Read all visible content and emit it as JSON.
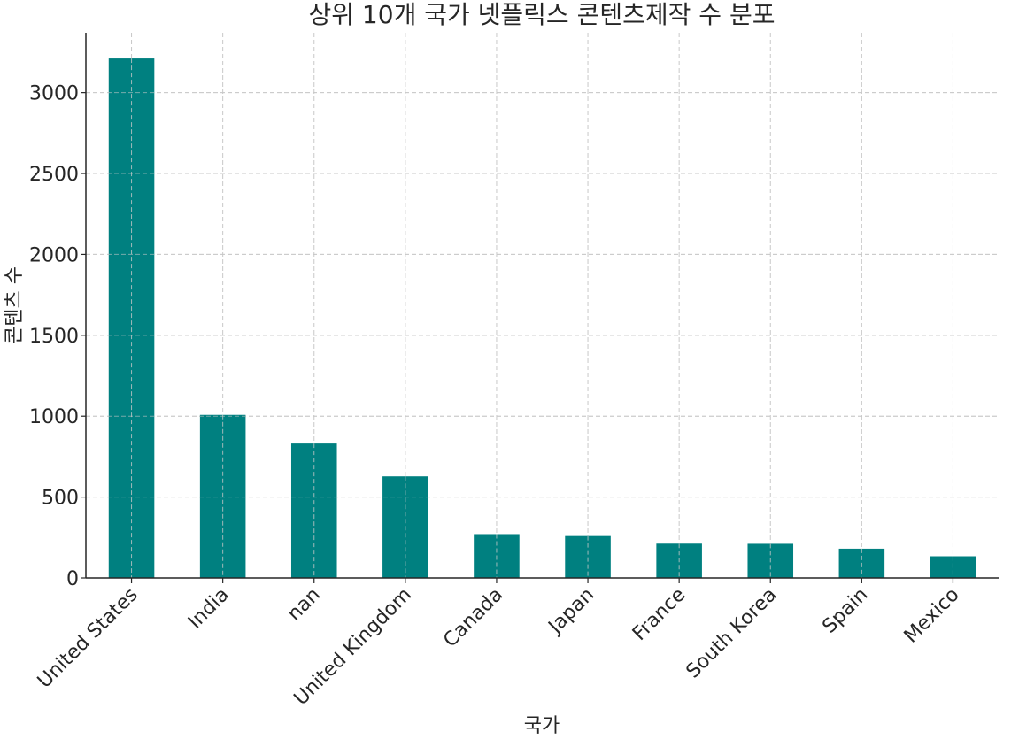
{
  "chart_data": {
    "type": "bar",
    "title": "상위 10개 국가 넷플릭스 콘텐츠제작 수 분포",
    "xlabel": "국가",
    "ylabel": "콘텐츠 수",
    "categories": [
      "United States",
      "India",
      "nan",
      "United Kingdom",
      "Canada",
      "Japan",
      "France",
      "South Korea",
      "Spain",
      "Mexico"
    ],
    "values": [
      3211,
      1008,
      831,
      628,
      271,
      259,
      212,
      211,
      181,
      134
    ],
    "ylim": [
      0,
      3370
    ],
    "yticks": [
      0,
      500,
      1000,
      1500,
      2000,
      2500,
      3000
    ],
    "grid": true,
    "bar_color": "#008080"
  }
}
